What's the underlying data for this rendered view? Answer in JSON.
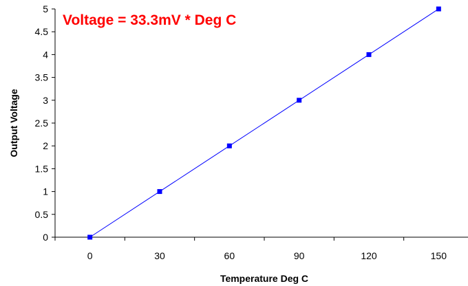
{
  "chart_data": {
    "type": "line",
    "title": "",
    "annotation": "Voltage = 33.3mV * Deg C",
    "xlabel": "Temperature Deg C",
    "ylabel": "Output Voltage",
    "xlim": [
      -15,
      165
    ],
    "ylim": [
      0,
      5
    ],
    "x_ticks": [
      0,
      30,
      60,
      90,
      120,
      150
    ],
    "x_tick_labels": [
      "0",
      "30",
      "60",
      "90",
      "120",
      "150"
    ],
    "y_ticks": [
      0,
      0.5,
      1,
      1.5,
      2,
      2.5,
      3,
      3.5,
      4,
      4.5,
      5
    ],
    "y_tick_labels": [
      "0",
      "0.5",
      "1",
      "1.5",
      "2",
      "2.5",
      "3",
      "3.5",
      "4",
      "4.5",
      "5"
    ],
    "grid": false,
    "legend": "none",
    "series": [
      {
        "x": [
          0,
          30,
          60,
          90,
          120,
          150
        ],
        "y": [
          0,
          1,
          2,
          3,
          4,
          5
        ],
        "color": "#0000ff",
        "marker": "square"
      }
    ],
    "colors": {
      "line": "#0000ff",
      "marker": "#0000ff",
      "annotation": "#ff0000",
      "axis": "#000000"
    }
  }
}
